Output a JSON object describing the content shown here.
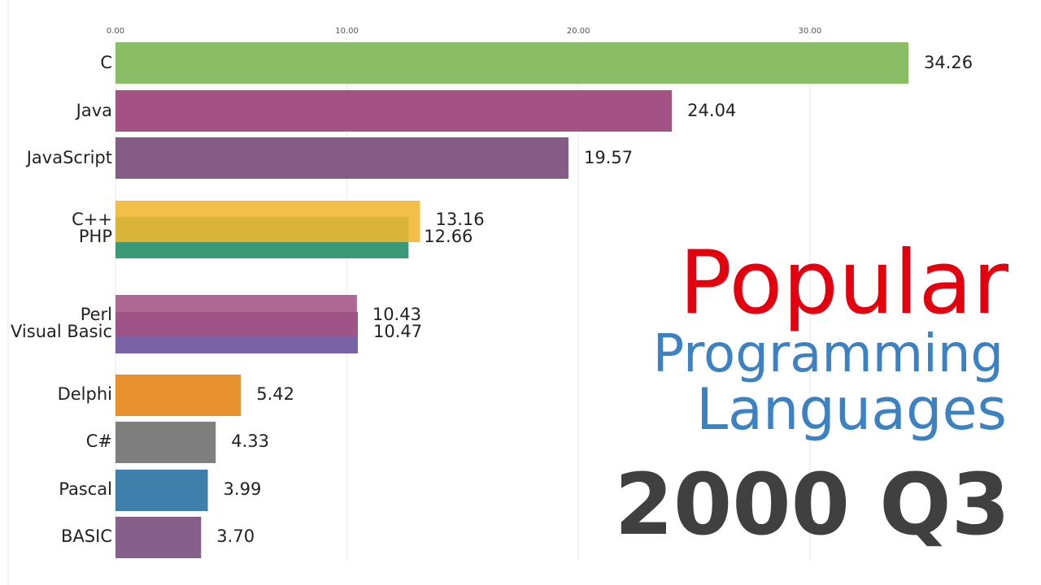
{
  "chart_data": {
    "type": "bar",
    "orientation": "horizontal",
    "categories": [
      "C",
      "Java",
      "JavaScript",
      "C++",
      "PHP",
      "Perl",
      "Visual Basic",
      "Delphi",
      "C#",
      "Pascal",
      "BASIC"
    ],
    "values": [
      34.26,
      24.04,
      19.57,
      13.16,
      12.66,
      10.43,
      10.47,
      5.42,
      4.33,
      3.99,
      3.7
    ],
    "value_labels": [
      "34.26",
      "24.04",
      "19.57",
      "13.16",
      "12.66",
      "10.43",
      "10.47",
      "5.42",
      "4.33",
      "3.99",
      "3.70"
    ],
    "colors": [
      "#8bbd67",
      "#a45284",
      "#845c84",
      "#f0b72f",
      "#3a9a78",
      "#a45284",
      "#7a62a6",
      "#e8912f",
      "#7f7f7f",
      "#3e7fab",
      "#84608a"
    ],
    "x_ticks": [
      "0.00",
      "10.00",
      "20.00",
      "30.00"
    ],
    "xlim": [
      0,
      34.26
    ],
    "x_axis_position": "top",
    "grid": true
  },
  "title": {
    "line1": "Popular",
    "line2": "Programming",
    "line3": "Languages",
    "period": "2000 Q3"
  },
  "colors": {
    "title_line1": "#e3000f",
    "title_lines_2_3": "#3c82c3",
    "period": "#404040"
  }
}
